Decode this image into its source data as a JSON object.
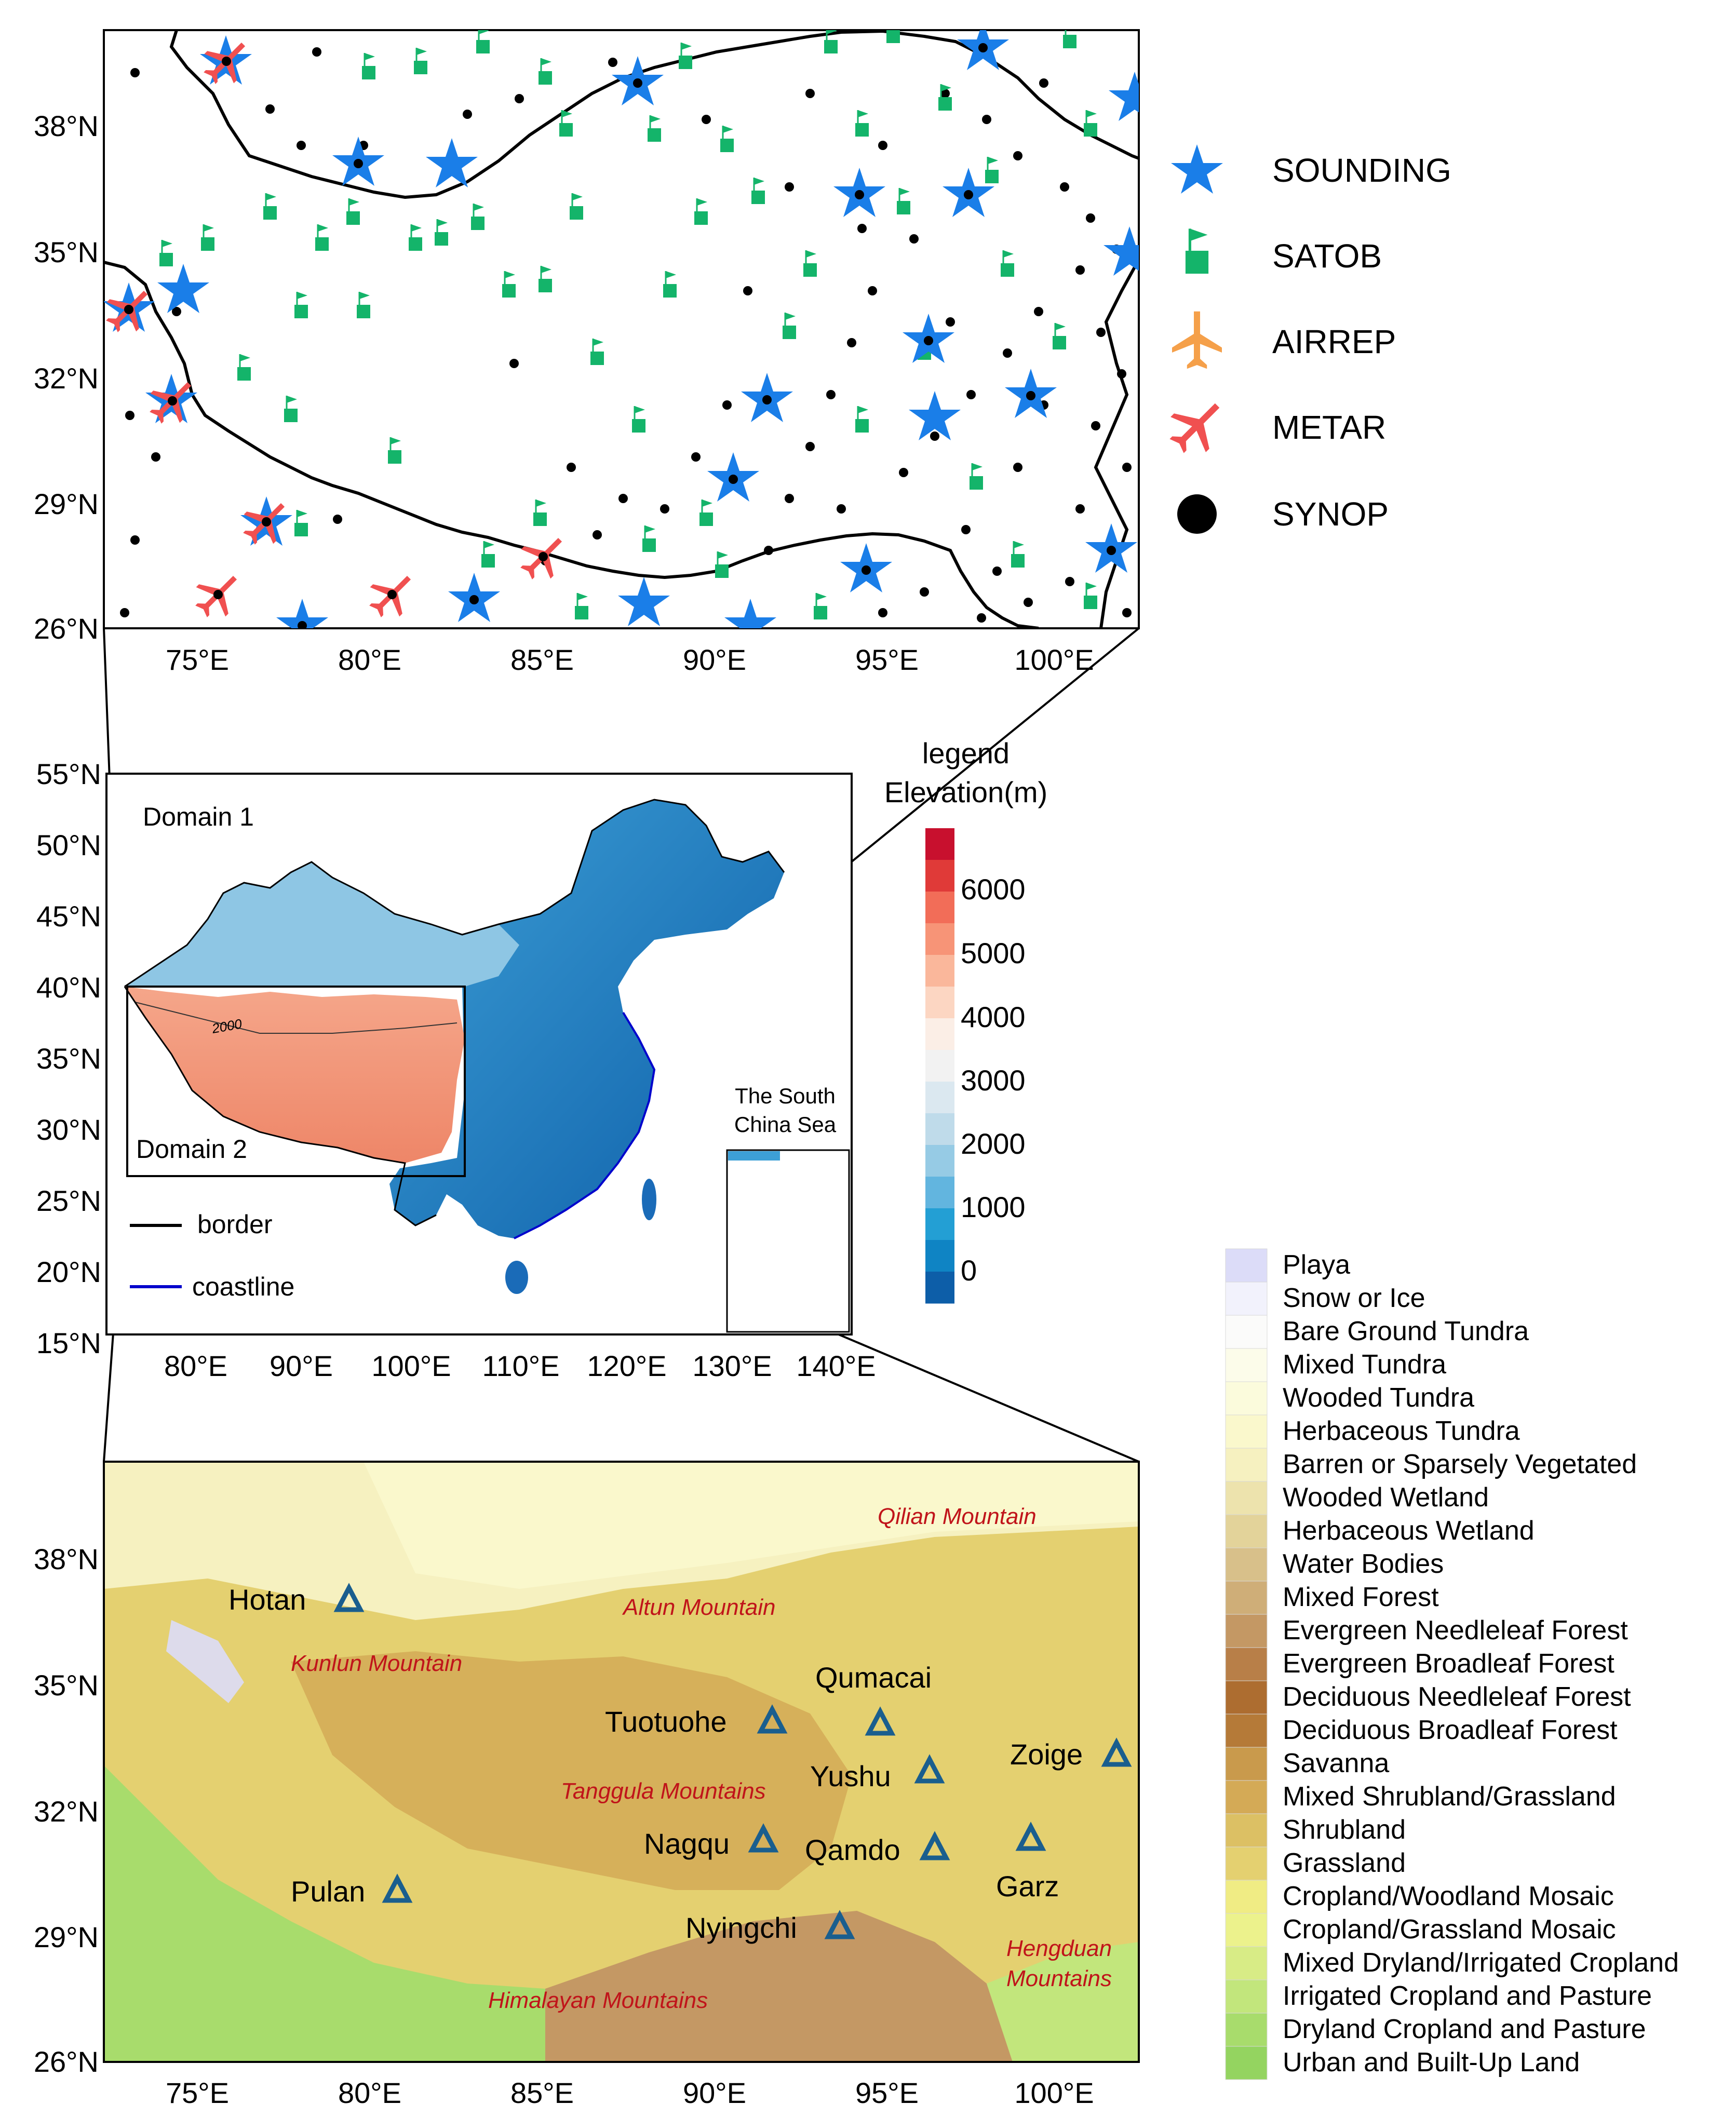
{
  "top_map": {
    "lat_labels": [
      "38°N",
      "35°N",
      "32°N",
      "29°N",
      "26°N"
    ],
    "lon_labels": [
      "75°E",
      "80°E",
      "85°E",
      "90°E",
      "95°E",
      "100°E"
    ],
    "legend": [
      {
        "label": "SOUNDING",
        "symbol": "star-icon",
        "color": "#1a7ee8"
      },
      {
        "label": "SATOB",
        "symbol": "flag-square-icon",
        "color": "#14b46a"
      },
      {
        "label": "AIRREP",
        "symbol": "airplane-icon",
        "color": "#f5a04a"
      },
      {
        "label": "METAR",
        "symbol": "airplane-icon",
        "color": "#f05050"
      },
      {
        "label": "SYNOP",
        "symbol": "dot-icon",
        "color": "#000000"
      }
    ]
  },
  "middle_map": {
    "lat_labels": [
      "55°N",
      "50°N",
      "45°N",
      "40°N",
      "35°N",
      "30°N",
      "25°N",
      "20°N",
      "15°N"
    ],
    "lon_labels": [
      "80°E",
      "90°E",
      "100°E",
      "110°E",
      "120°E",
      "130°E",
      "140°E"
    ],
    "domain1_label": "Domain 1",
    "domain2_label": "Domain 2",
    "contour_label": "2000",
    "inset_label_line1": "The South",
    "inset_label_line2": "China Sea",
    "border_legend": "border",
    "coastline_legend": "coastline",
    "colorbar_title1": "legend",
    "colorbar_title2": "Elevation(m)",
    "colorbar_ticks": [
      "6000",
      "5000",
      "4000",
      "3000",
      "2000",
      "1000",
      "0"
    ],
    "colorbar_colors": [
      "#c8102e",
      "#e03a38",
      "#f26d58",
      "#f79477",
      "#fab79b",
      "#fcd6c2",
      "#fbeee6",
      "#f2f2f2",
      "#dbe8f0",
      "#bfdbea",
      "#96cbe5",
      "#62b5df",
      "#239fd4",
      "#0f84c4",
      "#0d5ea8"
    ]
  },
  "bottom_map": {
    "lat_labels": [
      "38°N",
      "35°N",
      "32°N",
      "29°N",
      "26°N"
    ],
    "lon_labels": [
      "75°E",
      "80°E",
      "85°E",
      "90°E",
      "95°E",
      "100°E"
    ],
    "stations": [
      "Hotan",
      "Qumacai",
      "Tuotuohe",
      "Zoige",
      "Yushu",
      "Nagqu",
      "Qamdo",
      "Garz",
      "Pulan",
      "Nyingchi"
    ],
    "mountains": [
      "Qilian Mountain",
      "Altun Mountain",
      "Kunlun Mountain",
      "Tanggula Mountains",
      "Himalayan Mountains",
      "Hengduan",
      "Mountains"
    ]
  },
  "landuse_legend": [
    {
      "label": "Playa",
      "color": "#dcdcf8"
    },
    {
      "label": "Snow or Ice",
      "color": "#f2f2fc"
    },
    {
      "label": "Bare Ground Tundra",
      "color": "#fbfbfa"
    },
    {
      "label": "Mixed Tundra",
      "color": "#fcfcea"
    },
    {
      "label": "Wooded Tundra",
      "color": "#fbfbdc"
    },
    {
      "label": "Herbaceous Tundra",
      "color": "#faf8cc"
    },
    {
      "label": "Barren or Sparsely Vegetated",
      "color": "#f6f1c0"
    },
    {
      "label": "Wooded Wetland",
      "color": "#ede3ad"
    },
    {
      "label": "Herbaceous Wetland",
      "color": "#e3d39a"
    },
    {
      "label": "Water Bodies",
      "color": "#d8c08a"
    },
    {
      "label": "Mixed Forest",
      "color": "#cfae78"
    },
    {
      "label": "Evergreen Needleleaf Forest",
      "color": "#c49864"
    },
    {
      "label": "Evergreen Broadleaf Forest",
      "color": "#b87f48"
    },
    {
      "label": "Deciduous Needleleaf Forest",
      "color": "#ad6d30"
    },
    {
      "label": "Deciduous Broadleaf Forest",
      "color": "#b57a38"
    },
    {
      "label": "Savanna",
      "color": "#c99a4c"
    },
    {
      "label": "Mixed Shrubland/Grassland",
      "color": "#d4aa56"
    },
    {
      "label": "Shrubland",
      "color": "#dcc064"
    },
    {
      "label": "Grassland",
      "color": "#e4d070"
    },
    {
      "label": "Cropland/Woodland Mosaic",
      "color": "#f0ec84"
    },
    {
      "label": "Cropland/Grassland Mosaic",
      "color": "#ecf28c"
    },
    {
      "label": "Mixed Dryland/Irrigated Cropland",
      "color": "#d8ec86"
    },
    {
      "label": "Irrigated Cropland and Pasture",
      "color": "#c2e67c"
    },
    {
      "label": "Dryland Cropland and Pasture",
      "color": "#a8dc6c"
    },
    {
      "label": "Urban and Built-Up Land",
      "color": "#94d460"
    }
  ]
}
